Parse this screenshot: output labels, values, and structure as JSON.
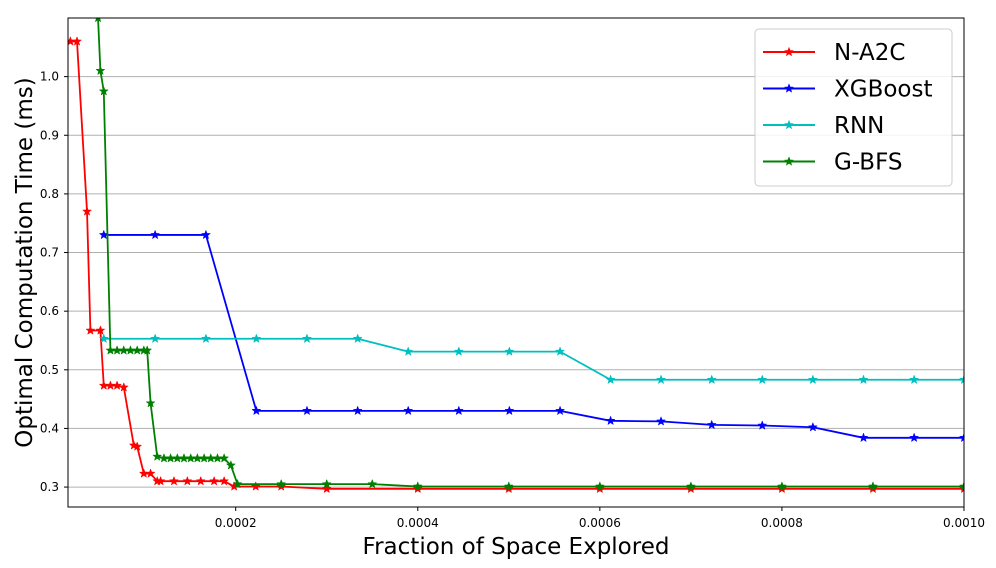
{
  "chart_data": {
    "type": "line",
    "xlabel": "Fraction of Space Explored",
    "ylabel": "Optimal Computation Time (ms)",
    "xlim": [
      1.58e-05,
      0.001
    ],
    "ylim": [
      0.266,
      1.1
    ],
    "xticks": [
      0.0002,
      0.0004,
      0.0006,
      0.0008,
      0.001
    ],
    "xtick_labels": [
      "0.0002",
      "0.0004",
      "0.0006",
      "0.0008",
      "0.0010"
    ],
    "yticks": [
      0.3,
      0.4,
      0.5,
      0.6,
      0.7,
      0.8,
      0.9,
      1.0
    ],
    "ytick_labels": [
      "0.3",
      "0.4",
      "0.5",
      "0.6",
      "0.7",
      "0.8",
      "0.9",
      "1.0"
    ],
    "grid": "horizontal",
    "legend_position": "top-right",
    "marker": "star",
    "series": [
      {
        "name": "N-A2C",
        "color": "#ff0000",
        "x": [
          1.84e-05,
          2.57e-05,
          3.67e-05,
          4.04e-05,
          5.14e-05,
          5.51e-05,
          6.24e-05,
          6.97e-05,
          7.71e-05,
          8.81e-05,
          9.18e-05,
          9.91e-05,
          0.0001065,
          0.0001138,
          0.0001175,
          0.0001322,
          0.0001469,
          0.0001616,
          0.0001763,
          0.0001873,
          0.0001983,
          0.000222,
          0.00025,
          0.0003,
          0.0004,
          0.0005,
          0.0006,
          0.0007,
          0.0008,
          0.0009,
          0.001
        ],
        "y": [
          1.06,
          1.06,
          0.77,
          0.567,
          0.567,
          0.473,
          0.473,
          0.473,
          0.47,
          0.371,
          0.369,
          0.323,
          0.323,
          0.31,
          0.31,
          0.31,
          0.31,
          0.31,
          0.31,
          0.31,
          0.301,
          0.301,
          0.301,
          0.297,
          0.297,
          0.297,
          0.297,
          0.297,
          0.297,
          0.297,
          0.297
        ]
      },
      {
        "name": "XGBoost",
        "color": "#0000ff",
        "x": [
          5.51e-05,
          0.0001115,
          0.0001673,
          0.0002227,
          0.0002783,
          0.000334,
          0.0003895,
          0.0004451,
          0.0005006,
          0.0005563,
          0.0006118,
          0.0006672,
          0.0007229,
          0.0007784,
          0.000834,
          0.0008896,
          0.0009452,
          0.001
        ],
        "y": [
          0.73,
          0.73,
          0.73,
          0.43,
          0.43,
          0.43,
          0.43,
          0.43,
          0.43,
          0.43,
          0.413,
          0.412,
          0.406,
          0.405,
          0.402,
          0.384,
          0.384,
          0.384
        ]
      },
      {
        "name": "RNN",
        "color": "#00bfbf",
        "x": [
          5.51e-05,
          0.0001115,
          0.0001673,
          0.0002227,
          0.0002783,
          0.000334,
          0.0003895,
          0.0004451,
          0.0005006,
          0.0005563,
          0.0006118,
          0.0006672,
          0.0007229,
          0.0007784,
          0.000834,
          0.0008896,
          0.0009452,
          0.001
        ],
        "y": [
          0.553,
          0.553,
          0.553,
          0.553,
          0.553,
          0.553,
          0.531,
          0.531,
          0.531,
          0.531,
          0.483,
          0.483,
          0.483,
          0.483,
          0.483,
          0.483,
          0.483,
          0.483
        ]
      },
      {
        "name": "G-BFS",
        "color": "#008000",
        "x": [
          4.88e-05,
          5.14e-05,
          5.51e-05,
          6.24e-05,
          6.97e-05,
          7.7e-05,
          8.44e-05,
          9.18e-05,
          9.91e-05,
          0.0001028,
          0.0001065,
          0.0001138,
          0.0001212,
          0.0001285,
          0.0001359,
          0.0001432,
          0.0001506,
          0.0001579,
          0.0001653,
          0.0001726,
          0.00018,
          0.0001873,
          0.0001947,
          0.000202,
          0.00025,
          0.0003,
          0.00035,
          0.0004,
          0.0005,
          0.0006,
          0.0007,
          0.0008,
          0.0009,
          0.001
        ],
        "y": [
          1.1,
          1.01,
          0.975,
          0.533,
          0.533,
          0.533,
          0.533,
          0.533,
          0.533,
          0.533,
          0.443,
          0.352,
          0.349,
          0.349,
          0.349,
          0.349,
          0.349,
          0.349,
          0.349,
          0.349,
          0.349,
          0.349,
          0.337,
          0.305,
          0.305,
          0.305,
          0.305,
          0.301,
          0.301,
          0.301,
          0.301,
          0.301,
          0.301,
          0.301
        ]
      }
    ]
  }
}
